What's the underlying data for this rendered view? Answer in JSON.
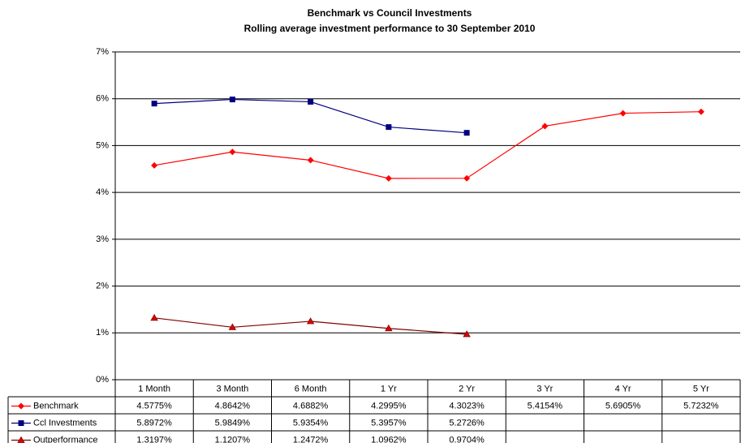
{
  "chart_data": {
    "type": "line",
    "title": "Benchmark vs Council Investments",
    "subtitle": "Rolling average investment performance to 30 September 2010",
    "categories": [
      "1 Month",
      "3 Month",
      "6 Month",
      "1 Yr",
      "2 Yr",
      "3 Yr",
      "4 Yr",
      "5 Yr"
    ],
    "series": [
      {
        "name": "Benchmark",
        "color": "#ff0000",
        "marker": "diamond",
        "values": [
          4.5775,
          4.8642,
          4.6882,
          4.2995,
          4.3023,
          5.4154,
          5.6905,
          5.7232
        ],
        "value_labels": [
          "4.5775%",
          "4.8642%",
          "4.6882%",
          "4.2995%",
          "4.3023%",
          "5.4154%",
          "5.6905%",
          "5.7232%"
        ]
      },
      {
        "name": "Ccl Investments",
        "color": "#000080",
        "marker": "square",
        "values": [
          5.8972,
          5.9849,
          5.9354,
          5.3957,
          5.2726,
          null,
          null,
          null
        ],
        "value_labels": [
          "5.8972%",
          "5.9849%",
          "5.9354%",
          "5.3957%",
          "5.2726%",
          null,
          null,
          null
        ]
      },
      {
        "name": "Outperformance",
        "color": "#800000",
        "marker": "triangle",
        "values": [
          1.3197,
          1.1207,
          1.2472,
          1.0962,
          0.9704,
          null,
          null,
          null
        ],
        "value_labels": [
          "1.3197%",
          "1.1207%",
          "1.2472%",
          "1.0962%",
          "0.9704%",
          null,
          null,
          null
        ]
      }
    ],
    "ylim": [
      0,
      7
    ],
    "yticks": [
      {
        "value": 0,
        "label": "0%"
      },
      {
        "value": 1,
        "label": "1%"
      },
      {
        "value": 2,
        "label": "2%"
      },
      {
        "value": 3,
        "label": "3%"
      },
      {
        "value": 4,
        "label": "4%"
      },
      {
        "value": 5,
        "label": "5%"
      },
      {
        "value": 6,
        "label": "6%"
      },
      {
        "value": 7,
        "label": "7%"
      }
    ],
    "grid": true,
    "legend": "data-table"
  }
}
